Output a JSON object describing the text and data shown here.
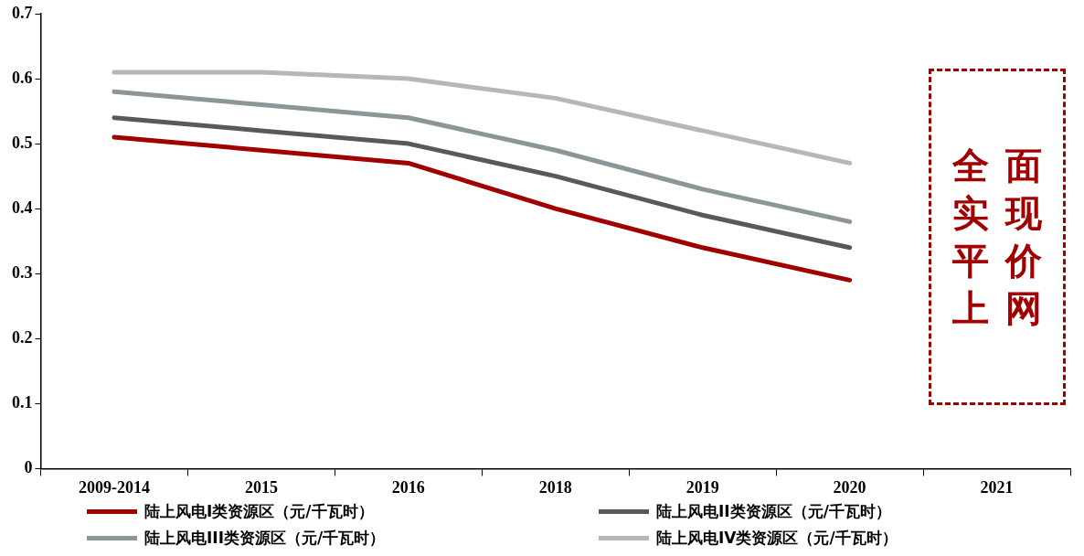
{
  "chart_data": {
    "type": "line",
    "categories": [
      "2009-2014",
      "2015",
      "2016",
      "2018",
      "2019",
      "2020",
      "2021"
    ],
    "series": [
      {
        "name": "陆上风电I类资源区（元/千瓦时）",
        "color": "#a00000",
        "values": [
          0.51,
          0.49,
          0.47,
          0.4,
          0.34,
          0.29,
          null
        ]
      },
      {
        "name": "陆上风电II类资源区（元/千瓦时）",
        "color": "#595959",
        "values": [
          0.54,
          0.52,
          0.5,
          0.45,
          0.39,
          0.34,
          null
        ]
      },
      {
        "name": "陆上风电III类资源区（元/千瓦时）",
        "color": "#8c9598",
        "values": [
          0.58,
          0.56,
          0.54,
          0.49,
          0.43,
          0.38,
          null
        ]
      },
      {
        "name": "陆上风电IV类资源区（元/千瓦时）",
        "color": "#b4b8ba",
        "values": [
          0.61,
          0.61,
          0.6,
          0.57,
          0.52,
          0.47,
          null
        ]
      }
    ],
    "ylim": [
      0,
      0.7
    ],
    "yticks": [
      0,
      0.1,
      0.2,
      0.3,
      0.4,
      0.5,
      0.6,
      0.7
    ],
    "annotations": [
      "全面实现平价上网"
    ],
    "grid": false,
    "legend": "bottom",
    "marker": "none",
    "line_style": "solid"
  }
}
